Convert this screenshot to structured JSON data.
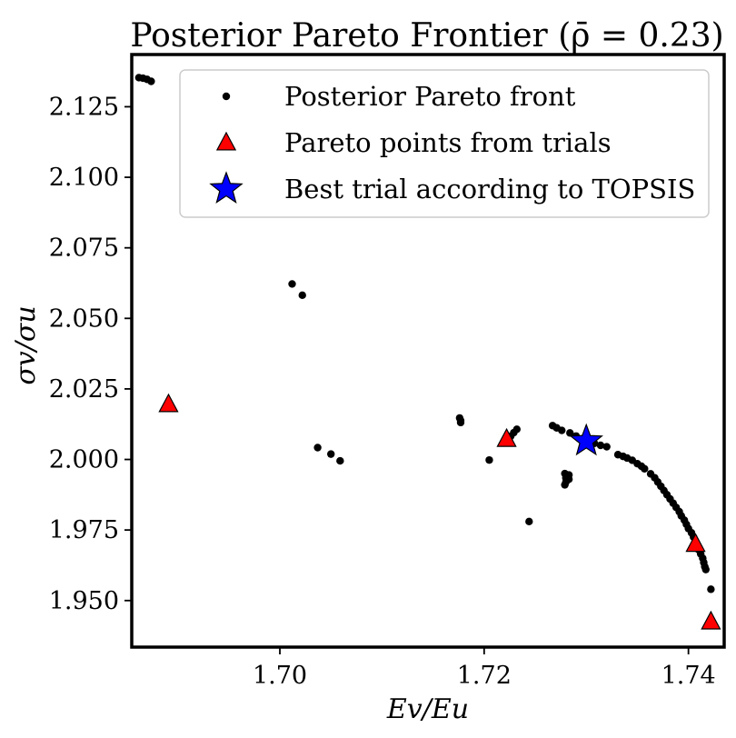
{
  "chart_data": {
    "type": "scatter",
    "title": "Posterior Pareto Frontier (ρ̄ = 0.23)",
    "xlabel": "Ev/Eu",
    "ylabel": "σv/σu",
    "xlim": [
      1.6855,
      1.7435
    ],
    "ylim": [
      1.9335,
      2.1435
    ],
    "xticks": [
      1.7,
      1.72,
      1.74
    ],
    "xtick_labels": [
      "1.70",
      "1.72",
      "1.74"
    ],
    "yticks": [
      1.95,
      1.975,
      2.0,
      2.025,
      2.05,
      2.075,
      2.1,
      2.125
    ],
    "ytick_labels": [
      "1.950",
      "1.975",
      "2.000",
      "2.025",
      "2.050",
      "2.075",
      "2.100",
      "2.125"
    ],
    "grid": false,
    "legend": "top-right",
    "series": [
      {
        "name": "Posterior Pareto front",
        "marker": "dot",
        "color": "#000000",
        "points": [
          [
            1.6862,
            2.1353
          ],
          [
            1.6866,
            2.1351
          ],
          [
            1.687,
            2.1347
          ],
          [
            1.6874,
            2.134
          ],
          [
            1.7012,
            2.0622
          ],
          [
            1.7022,
            2.0582
          ],
          [
            1.7037,
            2.0042
          ],
          [
            1.705,
            2.0019
          ],
          [
            1.7059,
            1.9995
          ],
          [
            1.7176,
            2.0147
          ],
          [
            1.7177,
            2.0138
          ],
          [
            1.7177,
            2.0131
          ],
          [
            1.7205,
            1.9998
          ],
          [
            1.7226,
            2.0082
          ],
          [
            1.7229,
            2.0095
          ],
          [
            1.7232,
            2.0107
          ],
          [
            1.7244,
            1.978
          ],
          [
            1.7267,
            2.012
          ],
          [
            1.7271,
            2.0112
          ],
          [
            1.7276,
            2.0103
          ],
          [
            1.7279,
            1.995
          ],
          [
            1.728,
            1.9935
          ],
          [
            1.728,
            1.992
          ],
          [
            1.7279,
            1.991
          ],
          [
            1.7283,
            1.993
          ],
          [
            1.7283,
            1.9945
          ],
          [
            1.7284,
            2.0094
          ],
          [
            1.729,
            2.0083
          ],
          [
            1.7296,
            2.0073
          ],
          [
            1.7302,
            2.0064
          ],
          [
            1.7308,
            2.0057
          ],
          [
            1.7314,
            2.005
          ],
          [
            1.732,
            2.0045
          ],
          [
            1.7331,
            2.0017
          ],
          [
            1.7336,
            2.0011
          ],
          [
            1.734,
            2.0005
          ],
          [
            1.7345,
            1.9997
          ],
          [
            1.735,
            1.9985
          ],
          [
            1.7354,
            1.9976
          ],
          [
            1.7357,
            1.9967
          ],
          [
            1.7363,
            1.9949
          ],
          [
            1.7367,
            1.9935
          ],
          [
            1.737,
            1.992
          ],
          [
            1.7373,
            1.9905
          ],
          [
            1.7376,
            1.989
          ],
          [
            1.7379,
            1.9875
          ],
          [
            1.7382,
            1.986
          ],
          [
            1.7385,
            1.9845
          ],
          [
            1.7388,
            1.983
          ],
          [
            1.7391,
            1.9815
          ],
          [
            1.7393,
            1.98
          ],
          [
            1.7396,
            1.9785
          ],
          [
            1.7398,
            1.977
          ],
          [
            1.74,
            1.9755
          ],
          [
            1.7403,
            1.974
          ],
          [
            1.7405,
            1.9725
          ],
          [
            1.7407,
            1.971
          ],
          [
            1.7409,
            1.9695
          ],
          [
            1.741,
            1.968
          ],
          [
            1.7412,
            1.9665
          ],
          [
            1.7414,
            1.965
          ],
          [
            1.7415,
            1.9635
          ],
          [
            1.7416,
            1.962
          ],
          [
            1.7417,
            1.961
          ],
          [
            1.7422,
            1.954
          ]
        ]
      },
      {
        "name": "Pareto points from trials",
        "marker": "triangle",
        "color": "#ff0000",
        "points": [
          [
            1.6891,
            2.0195
          ],
          [
            1.7222,
            2.0072
          ],
          [
            1.7407,
            1.97
          ],
          [
            1.7422,
            1.9425
          ]
        ]
      },
      {
        "name": "Best trial according to TOPSIS",
        "marker": "star",
        "color": "#0000ff",
        "points": [
          [
            1.73,
            2.0065
          ]
        ]
      }
    ]
  }
}
